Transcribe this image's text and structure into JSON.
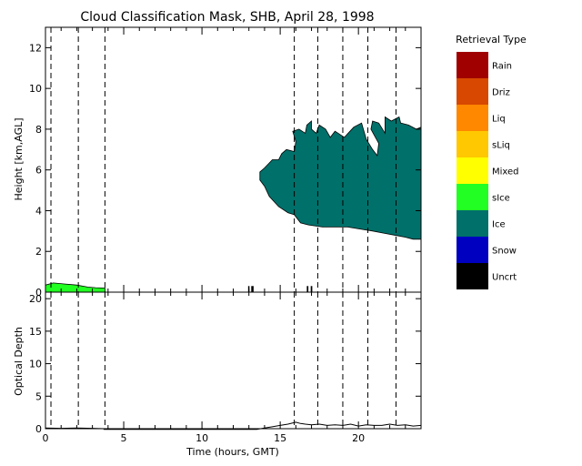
{
  "title": "Cloud Classification Mask, SHB, April 28, 1998",
  "legend": {
    "title": "Retrieval Type",
    "items": [
      {
        "label": "Rain",
        "color": "#a00000"
      },
      {
        "label": "Driz",
        "color": "#d84800"
      },
      {
        "label": "Liq",
        "color": "#ff8800"
      },
      {
        "label": "sLiq",
        "color": "#ffc800"
      },
      {
        "label": "Mixed",
        "color": "#ffff00"
      },
      {
        "label": "sIce",
        "color": "#22ff22"
      },
      {
        "label": "Ice",
        "color": "#00706a"
      },
      {
        "label": "Snow",
        "color": "#0000c0"
      },
      {
        "label": "Uncrt",
        "color": "#000000"
      }
    ]
  },
  "chart_data": [
    {
      "type": "area",
      "panel": "top",
      "xlabel": "",
      "ylabel": "Height [km,AGL]",
      "xlim": [
        0,
        24
      ],
      "ylim": [
        0,
        13
      ],
      "yticks": [
        0,
        2,
        4,
        6,
        8,
        10,
        12
      ],
      "xticks": [
        0,
        5,
        10,
        15,
        20
      ],
      "vlines_hours": [
        0.35,
        2.1,
        3.8,
        15.9,
        17.4,
        19.0,
        20.6,
        22.4
      ],
      "series": [
        {
          "class": "Ice",
          "polygon_hours_km": [
            [
              13.7,
              5.5
            ],
            [
              13.7,
              5.9
            ],
            [
              14.0,
              6.1
            ],
            [
              14.5,
              6.5
            ],
            [
              14.9,
              6.5
            ],
            [
              15.1,
              6.8
            ],
            [
              15.4,
              7.0
            ],
            [
              15.9,
              6.9
            ],
            [
              16.0,
              7.4
            ],
            [
              15.8,
              7.9
            ],
            [
              16.2,
              8.0
            ],
            [
              16.6,
              7.8
            ],
            [
              16.7,
              8.2
            ],
            [
              17.0,
              8.4
            ],
            [
              17.0,
              8.0
            ],
            [
              17.3,
              7.8
            ],
            [
              17.5,
              8.2
            ],
            [
              17.9,
              8.0
            ],
            [
              18.2,
              7.6
            ],
            [
              18.5,
              7.9
            ],
            [
              19.1,
              7.6
            ],
            [
              19.7,
              8.1
            ],
            [
              20.2,
              8.3
            ],
            [
              20.5,
              7.5
            ],
            [
              20.9,
              7.0
            ],
            [
              21.2,
              6.7
            ],
            [
              21.3,
              7.3
            ],
            [
              20.8,
              8.0
            ],
            [
              20.9,
              8.4
            ],
            [
              21.3,
              8.3
            ],
            [
              21.7,
              7.8
            ],
            [
              21.7,
              8.6
            ],
            [
              22.1,
              8.4
            ],
            [
              22.6,
              8.6
            ],
            [
              22.7,
              8.3
            ],
            [
              23.2,
              8.2
            ],
            [
              23.7,
              8.0
            ],
            [
              24.0,
              8.1
            ],
            [
              24.0,
              2.6
            ],
            [
              23.5,
              2.6
            ],
            [
              23.0,
              2.7
            ],
            [
              22.3,
              2.8
            ],
            [
              21.6,
              2.9
            ],
            [
              20.9,
              3.0
            ],
            [
              20.1,
              3.1
            ],
            [
              19.3,
              3.2
            ],
            [
              18.5,
              3.2
            ],
            [
              17.7,
              3.2
            ],
            [
              16.8,
              3.3
            ],
            [
              16.3,
              3.4
            ],
            [
              15.9,
              3.8
            ],
            [
              15.5,
              3.9
            ],
            [
              14.9,
              4.2
            ],
            [
              14.3,
              4.7
            ],
            [
              14.0,
              5.2
            ]
          ]
        },
        {
          "class": "sIce",
          "polygon_hours_km": [
            [
              0.0,
              0.0
            ],
            [
              0.0,
              0.35
            ],
            [
              0.5,
              0.45
            ],
            [
              1.2,
              0.4
            ],
            [
              2.0,
              0.35
            ],
            [
              2.7,
              0.25
            ],
            [
              3.2,
              0.22
            ],
            [
              3.8,
              0.2
            ],
            [
              3.8,
              0.0
            ]
          ]
        },
        {
          "class": "Uncrt",
          "segments_hours_km": [
            [
              12.95,
              13.0,
              0.0,
              0.3
            ],
            [
              13.15,
              13.3,
              0.0,
              0.3
            ],
            [
              16.7,
              16.8,
              0.0,
              0.3
            ],
            [
              16.95,
              17.05,
              0.0,
              0.3
            ]
          ]
        }
      ]
    },
    {
      "type": "line",
      "panel": "bottom",
      "xlabel": "Time (hours, GMT)",
      "ylabel": "Optical Depth",
      "xlim": [
        0,
        24
      ],
      "ylim": [
        0,
        21
      ],
      "yticks": [
        0,
        5,
        10,
        15,
        20
      ],
      "xticks": [
        0,
        5,
        10,
        15,
        20
      ],
      "vlines_hours": [
        0.35,
        2.1,
        3.8,
        15.9,
        17.4,
        19.0,
        20.6,
        22.4
      ],
      "series": [
        {
          "x": [
            0,
            1,
            2,
            3,
            3.7,
            3.75,
            13.5,
            14.0,
            14.5,
            15.0,
            15.5,
            16.0,
            16.3,
            16.6,
            17.0,
            17.5,
            18.0,
            18.5,
            19.0,
            19.5,
            20.0,
            20.5,
            21.0,
            21.5,
            22.0,
            22.5,
            23.0,
            23.5,
            24.0
          ],
          "y": [
            0.1,
            0.05,
            0.1,
            0.05,
            0.0,
            -0.1,
            -0.1,
            0.1,
            0.3,
            0.5,
            0.7,
            1.0,
            0.8,
            0.7,
            0.6,
            0.7,
            0.5,
            0.6,
            0.5,
            0.7,
            0.4,
            0.6,
            0.5,
            0.5,
            0.7,
            0.5,
            0.6,
            0.4,
            0.5
          ]
        }
      ]
    }
  ]
}
